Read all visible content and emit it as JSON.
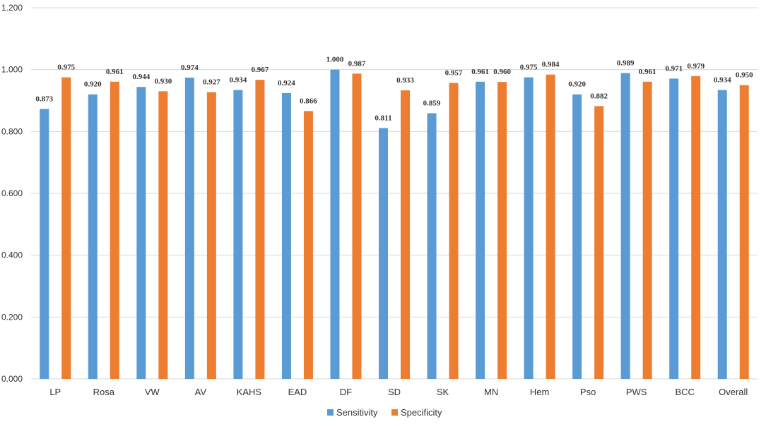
{
  "chart_data": {
    "type": "bar",
    "categories": [
      "LP",
      "Rosa",
      "VW",
      "AV",
      "KAHS",
      "EAD",
      "DF",
      "SD",
      "SK",
      "MN",
      "Hem",
      "Pso",
      "PWS",
      "BCC",
      "Overall"
    ],
    "series": [
      {
        "name": "Sensitivity",
        "color": "#5B9BD5",
        "values": [
          0.873,
          0.92,
          0.944,
          0.974,
          0.934,
          0.924,
          1.0,
          0.811,
          0.859,
          0.961,
          0.975,
          0.92,
          0.989,
          0.971,
          0.934
        ],
        "labels": [
          "0.873",
          "0.920",
          "0.944",
          "0.974",
          "0.934",
          "0.924",
          "1.000",
          "0.811",
          "0.859",
          "0.961",
          "0.975",
          "0.920",
          "0.989",
          "0.971",
          "0.934"
        ]
      },
      {
        "name": "Specificity",
        "color": "#ED7D31",
        "values": [
          0.975,
          0.961,
          0.93,
          0.927,
          0.967,
          0.866,
          0.987,
          0.933,
          0.957,
          0.96,
          0.984,
          0.882,
          0.961,
          0.979,
          0.95
        ],
        "labels": [
          "0.975",
          "0.961",
          "0.930",
          "0.927",
          "0.967",
          "0.866",
          "0.987",
          "0.933",
          "0.957",
          "0.960",
          "0.984",
          "0.882",
          "0.961",
          "0.979",
          "0.950"
        ]
      }
    ],
    "yticks": [
      "0.000",
      "0.200",
      "0.400",
      "0.600",
      "0.800",
      "1.000",
      "1.200"
    ],
    "ylim": [
      0,
      1.2
    ],
    "grid": true,
    "legend_position": "bottom-center",
    "gridline_color": "#D9D9D9"
  }
}
